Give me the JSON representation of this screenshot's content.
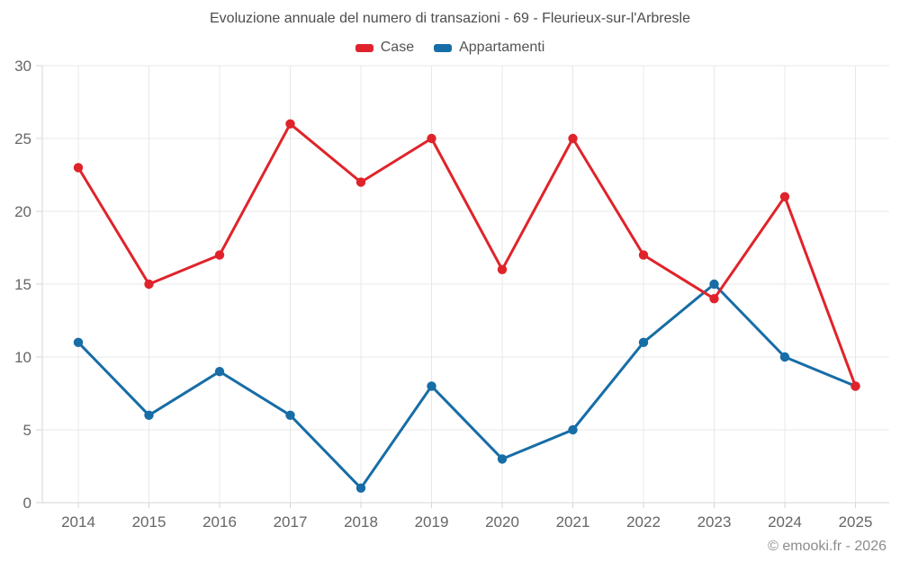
{
  "title": "Evoluzione annuale del numero di transazioni - 69 - Fleurieux-sur-l'Arbresle",
  "copyright": "© emooki.fr - 2026",
  "chart_data": {
    "type": "line",
    "title": "Evoluzione annuale del numero di transazioni - 69 - Fleurieux-sur-l'Arbresle",
    "categories": [
      "2014",
      "2015",
      "2016",
      "2017",
      "2018",
      "2019",
      "2020",
      "2021",
      "2022",
      "2023",
      "2024",
      "2025"
    ],
    "series": [
      {
        "name": "Case",
        "color": "#e0232a",
        "values": [
          23,
          15,
          17,
          26,
          22,
          25,
          16,
          25,
          17,
          14,
          21,
          8
        ]
      },
      {
        "name": "Appartamenti",
        "color": "#176da6",
        "values": [
          11,
          6,
          9,
          6,
          1,
          8,
          3,
          5,
          11,
          15,
          10,
          8
        ]
      }
    ],
    "xlabel": "",
    "ylabel": "",
    "ylim": [
      0,
      30
    ],
    "yticks": [
      0,
      5,
      10,
      15,
      20,
      25,
      30
    ],
    "grid": "on",
    "legend_position": "top-center",
    "grid_color": "#e8e8e8",
    "axis_color": "#d6d6d6",
    "tick_label_color": "#666666"
  }
}
